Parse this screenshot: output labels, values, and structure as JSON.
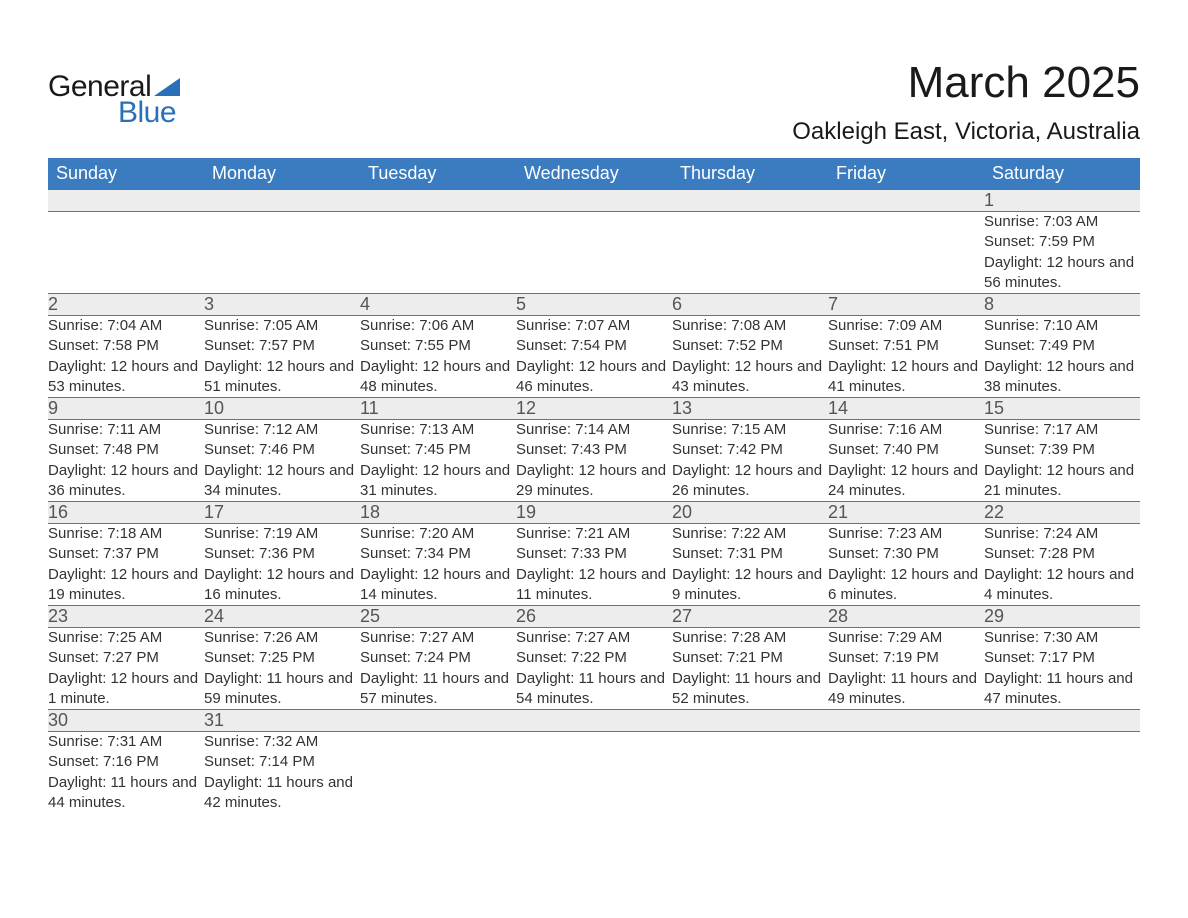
{
  "logo": {
    "main": "General",
    "sub": "Blue"
  },
  "title": {
    "month": "March 2025",
    "location": "Oakleigh East, Victoria, Australia"
  },
  "colors": {
    "header_bg": "#3b7bbf",
    "header_text": "#ffffff",
    "daynum_bg": "#ededed",
    "border": "#3b7bbf",
    "logo_accent": "#2a70b8",
    "body_text": "#333333"
  },
  "weekdays": [
    "Sunday",
    "Monday",
    "Tuesday",
    "Wednesday",
    "Thursday",
    "Friday",
    "Saturday"
  ],
  "weeks": [
    {
      "nums": [
        "",
        "",
        "",
        "",
        "",
        "",
        "1"
      ],
      "details": [
        "",
        "",
        "",
        "",
        "",
        "",
        "Sunrise: 7:03 AM\nSunset: 7:59 PM\nDaylight: 12 hours and 56 minutes."
      ]
    },
    {
      "nums": [
        "2",
        "3",
        "4",
        "5",
        "6",
        "7",
        "8"
      ],
      "details": [
        "Sunrise: 7:04 AM\nSunset: 7:58 PM\nDaylight: 12 hours and 53 minutes.",
        "Sunrise: 7:05 AM\nSunset: 7:57 PM\nDaylight: 12 hours and 51 minutes.",
        "Sunrise: 7:06 AM\nSunset: 7:55 PM\nDaylight: 12 hours and 48 minutes.",
        "Sunrise: 7:07 AM\nSunset: 7:54 PM\nDaylight: 12 hours and 46 minutes.",
        "Sunrise: 7:08 AM\nSunset: 7:52 PM\nDaylight: 12 hours and 43 minutes.",
        "Sunrise: 7:09 AM\nSunset: 7:51 PM\nDaylight: 12 hours and 41 minutes.",
        "Sunrise: 7:10 AM\nSunset: 7:49 PM\nDaylight: 12 hours and 38 minutes."
      ]
    },
    {
      "nums": [
        "9",
        "10",
        "11",
        "12",
        "13",
        "14",
        "15"
      ],
      "details": [
        "Sunrise: 7:11 AM\nSunset: 7:48 PM\nDaylight: 12 hours and 36 minutes.",
        "Sunrise: 7:12 AM\nSunset: 7:46 PM\nDaylight: 12 hours and 34 minutes.",
        "Sunrise: 7:13 AM\nSunset: 7:45 PM\nDaylight: 12 hours and 31 minutes.",
        "Sunrise: 7:14 AM\nSunset: 7:43 PM\nDaylight: 12 hours and 29 minutes.",
        "Sunrise: 7:15 AM\nSunset: 7:42 PM\nDaylight: 12 hours and 26 minutes.",
        "Sunrise: 7:16 AM\nSunset: 7:40 PM\nDaylight: 12 hours and 24 minutes.",
        "Sunrise: 7:17 AM\nSunset: 7:39 PM\nDaylight: 12 hours and 21 minutes."
      ]
    },
    {
      "nums": [
        "16",
        "17",
        "18",
        "19",
        "20",
        "21",
        "22"
      ],
      "details": [
        "Sunrise: 7:18 AM\nSunset: 7:37 PM\nDaylight: 12 hours and 19 minutes.",
        "Sunrise: 7:19 AM\nSunset: 7:36 PM\nDaylight: 12 hours and 16 minutes.",
        "Sunrise: 7:20 AM\nSunset: 7:34 PM\nDaylight: 12 hours and 14 minutes.",
        "Sunrise: 7:21 AM\nSunset: 7:33 PM\nDaylight: 12 hours and 11 minutes.",
        "Sunrise: 7:22 AM\nSunset: 7:31 PM\nDaylight: 12 hours and 9 minutes.",
        "Sunrise: 7:23 AM\nSunset: 7:30 PM\nDaylight: 12 hours and 6 minutes.",
        "Sunrise: 7:24 AM\nSunset: 7:28 PM\nDaylight: 12 hours and 4 minutes."
      ]
    },
    {
      "nums": [
        "23",
        "24",
        "25",
        "26",
        "27",
        "28",
        "29"
      ],
      "details": [
        "Sunrise: 7:25 AM\nSunset: 7:27 PM\nDaylight: 12 hours and 1 minute.",
        "Sunrise: 7:26 AM\nSunset: 7:25 PM\nDaylight: 11 hours and 59 minutes.",
        "Sunrise: 7:27 AM\nSunset: 7:24 PM\nDaylight: 11 hours and 57 minutes.",
        "Sunrise: 7:27 AM\nSunset: 7:22 PM\nDaylight: 11 hours and 54 minutes.",
        "Sunrise: 7:28 AM\nSunset: 7:21 PM\nDaylight: 11 hours and 52 minutes.",
        "Sunrise: 7:29 AM\nSunset: 7:19 PM\nDaylight: 11 hours and 49 minutes.",
        "Sunrise: 7:30 AM\nSunset: 7:17 PM\nDaylight: 11 hours and 47 minutes."
      ]
    },
    {
      "nums": [
        "30",
        "31",
        "",
        "",
        "",
        "",
        ""
      ],
      "details": [
        "Sunrise: 7:31 AM\nSunset: 7:16 PM\nDaylight: 11 hours and 44 minutes.",
        "Sunrise: 7:32 AM\nSunset: 7:14 PM\nDaylight: 11 hours and 42 minutes.",
        "",
        "",
        "",
        "",
        ""
      ]
    }
  ]
}
